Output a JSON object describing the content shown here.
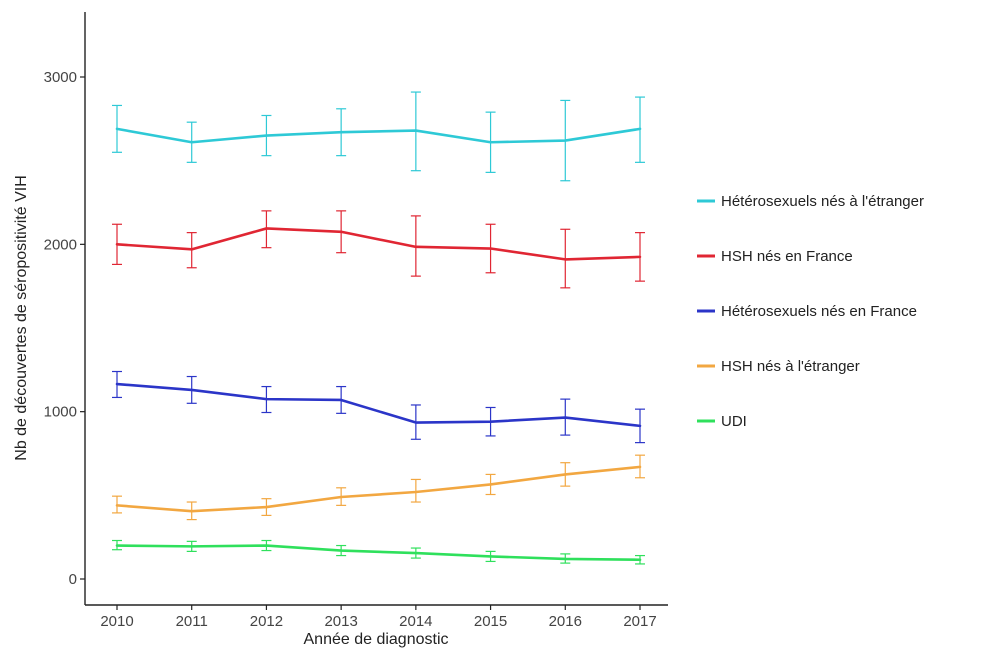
{
  "chart_data": {
    "type": "line",
    "xlabel": "Année de diagnostic",
    "ylabel": "Nb de découvertes de séropositivité VIH",
    "x": [
      2010,
      2011,
      2012,
      2013,
      2014,
      2015,
      2016,
      2017
    ],
    "x_ticks": [
      "2010",
      "2011",
      "2012",
      "2013",
      "2014",
      "2015",
      "2016",
      "2017"
    ],
    "y_ticks": [
      0,
      1000,
      2000,
      3000
    ],
    "y_tick_labels": [
      "0",
      "1000",
      "2000",
      "3000"
    ],
    "ylim": [
      -150,
      3400
    ],
    "grid": false,
    "legend_position": "right",
    "series": [
      {
        "name": "Hétérosexuels nés à l'étranger",
        "color": "#2ec9d6",
        "values": [
          2690,
          2610,
          2650,
          2670,
          2680,
          2610,
          2620,
          2690
        ],
        "lower": [
          2550,
          2490,
          2530,
          2530,
          2440,
          2430,
          2380,
          2490
        ],
        "upper": [
          2830,
          2730,
          2770,
          2810,
          2910,
          2790,
          2860,
          2880
        ]
      },
      {
        "name": "HSH nés en France",
        "color": "#e02633",
        "values": [
          2000,
          1970,
          2095,
          2075,
          1985,
          1975,
          1910,
          1925
        ],
        "lower": [
          1880,
          1860,
          1980,
          1950,
          1810,
          1830,
          1740,
          1780
        ],
        "upper": [
          2120,
          2070,
          2200,
          2200,
          2170,
          2120,
          2090,
          2070
        ]
      },
      {
        "name": "Hétérosexuels nés en France",
        "color": "#2b35c8",
        "values": [
          1165,
          1130,
          1075,
          1070,
          935,
          940,
          965,
          915
        ],
        "lower": [
          1085,
          1050,
          995,
          990,
          835,
          855,
          860,
          815
        ],
        "upper": [
          1240,
          1210,
          1150,
          1150,
          1040,
          1025,
          1075,
          1015
        ]
      },
      {
        "name": "HSH nés à l'étranger",
        "color": "#f2a741",
        "values": [
          440,
          405,
          430,
          490,
          520,
          565,
          625,
          670
        ],
        "lower": [
          395,
          355,
          380,
          440,
          460,
          505,
          555,
          605
        ],
        "upper": [
          495,
          460,
          480,
          545,
          595,
          625,
          695,
          740
        ]
      },
      {
        "name": "UDI",
        "color": "#2fe05c",
        "values": [
          200,
          195,
          200,
          170,
          155,
          135,
          120,
          115
        ],
        "lower": [
          175,
          165,
          170,
          140,
          125,
          105,
          95,
          90
        ],
        "upper": [
          230,
          225,
          230,
          200,
          185,
          165,
          150,
          140
        ]
      }
    ]
  }
}
